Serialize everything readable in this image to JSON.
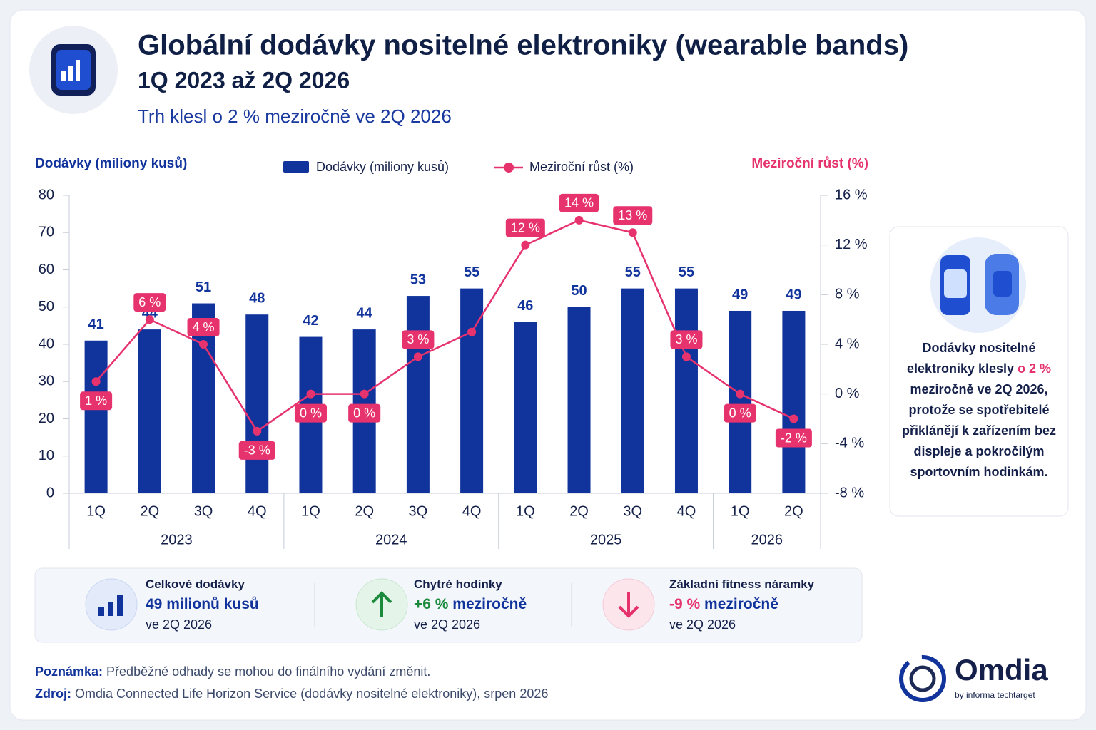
{
  "header": {
    "title": "Globální dodávky nositelné elektroniky (wearable bands)",
    "subtitle": "1Q 2023 až 2Q 2026",
    "tagline": "Trh klesl o 2 % meziročně ve 2Q 2026"
  },
  "chart_data": {
    "type": "bar",
    "y_label": "Dodávky (miliony kusů)",
    "y2_label": "Meziroční růst (%)",
    "categories": [
      "1Q",
      "2Q",
      "3Q",
      "4Q",
      "1Q",
      "2Q",
      "3Q",
      "4Q",
      "1Q",
      "2Q",
      "3Q",
      "4Q",
      "1Q",
      "2Q"
    ],
    "category_years": [
      "2023",
      "2023",
      "2023",
      "2023",
      "2024",
      "2024",
      "2024",
      "2024",
      "2025",
      "2025",
      "2025",
      "2025",
      "2026",
      "2026"
    ],
    "series": [
      {
        "name": "Dodávky (miliony kusů)",
        "type": "bar",
        "color": "#11339c",
        "values": [
          41,
          44,
          51,
          48,
          42,
          44,
          53,
          55,
          46,
          50,
          55,
          55,
          49,
          49
        ]
      },
      {
        "name": "Meziroční růst (%)",
        "type": "line",
        "axis": "y2",
        "color": "#e6336e",
        "values": [
          1,
          6,
          4,
          -3,
          0,
          0,
          3,
          5,
          12,
          14,
          13,
          3,
          0,
          -2
        ],
        "value_labels": [
          "1 %",
          "6 %",
          "4 %",
          "-3 %",
          "0 %",
          "0 %",
          "3 %",
          null,
          "12 %",
          "14 %",
          "13 %",
          "3 %",
          "0 %",
          "-2 %"
        ]
      }
    ],
    "ylim": [
      0,
      80
    ],
    "yticks": [
      0,
      10,
      20,
      30,
      40,
      50,
      60,
      70,
      80
    ],
    "y2lim": [
      -8,
      16
    ],
    "y2ticks": [
      {
        "value": -8,
        "label": "-8 %"
      },
      {
        "value": -4,
        "label": "-4 %"
      },
      {
        "value": 0,
        "label": "0 %"
      },
      {
        "value": 4,
        "label": "4 %"
      },
      {
        "value": 8,
        "label": "8 %"
      },
      {
        "value": 12,
        "label": "12 %"
      },
      {
        "value": 16,
        "label": "16 %"
      }
    ],
    "grid": false
  },
  "side_panel": {
    "text_before": "Dodávky nositelné elektroniky klesly",
    "highlight": "o 2 %",
    "text_after": "meziročně ve 2Q 2026, protože se spotřebitelé přiklánějí k zařízením bez displeje a pokročilým sportovním hodinkám."
  },
  "kpis": [
    {
      "title": "Celkové dodávky",
      "value": "49 milionů kusů",
      "period": "ve 2Q 2026"
    },
    {
      "title": "Chytré hodinky",
      "change": "+6 %",
      "value": "meziročně",
      "period": "ve 2Q 2026"
    },
    {
      "title": "Základní fitness náramky",
      "change": "-9 %",
      "value": "meziročně",
      "period": "ve 2Q 2026"
    }
  ],
  "footer": {
    "note_label": "Poznámka:",
    "note": "Předběžné odhady se mohou do finálního vydání změnit.",
    "source_label": "Zdroj:",
    "source": "Omdia Connected Life Horizon Service (dodávky nositelné elektroniky), srpen 2026"
  },
  "logo": {
    "name": "Omdia",
    "byline": "by informa techtarget"
  }
}
